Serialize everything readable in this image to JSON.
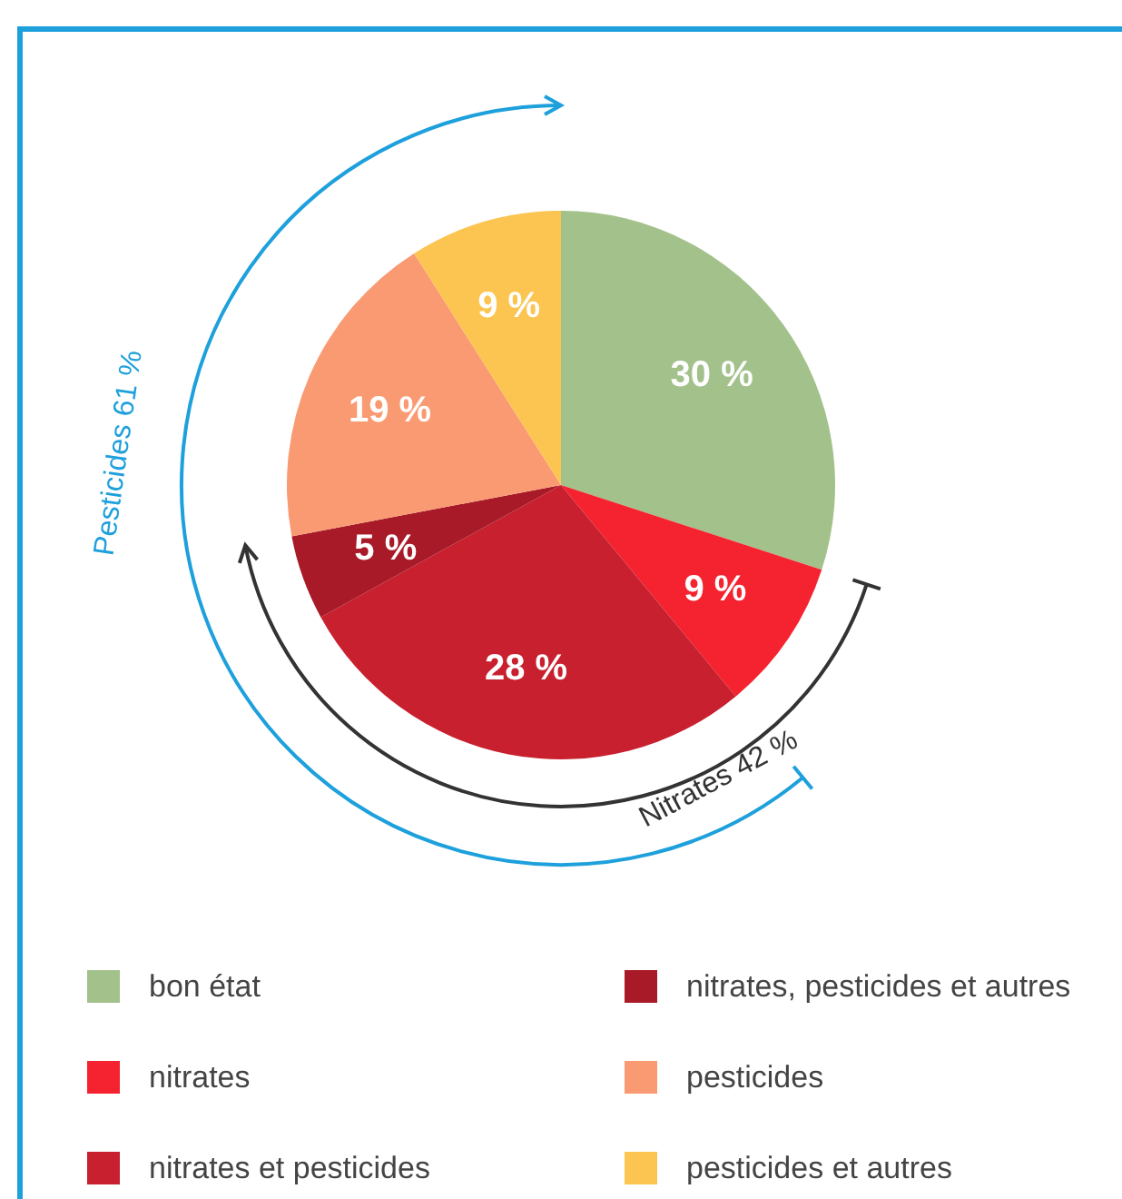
{
  "chart_data": {
    "type": "pie",
    "categories": [
      "bon état",
      "nitrates",
      "nitrates et pesticides",
      "nitrates, pesticides et autres",
      "pesticides",
      "pesticides et autres"
    ],
    "values": [
      30,
      9,
      28,
      5,
      19,
      9
    ],
    "colors": [
      "#a3c18b",
      "#f5222f",
      "#c8202f",
      "#a81a28",
      "#f99a72",
      "#fcc451"
    ],
    "value_labels": [
      "30 %",
      "9 %",
      "28 %",
      "5 %",
      "19 %",
      "9 %"
    ],
    "annotations": [
      "Pesticides 61 %",
      "Nitrates 42 %"
    ],
    "legend": "bottom"
  }
}
